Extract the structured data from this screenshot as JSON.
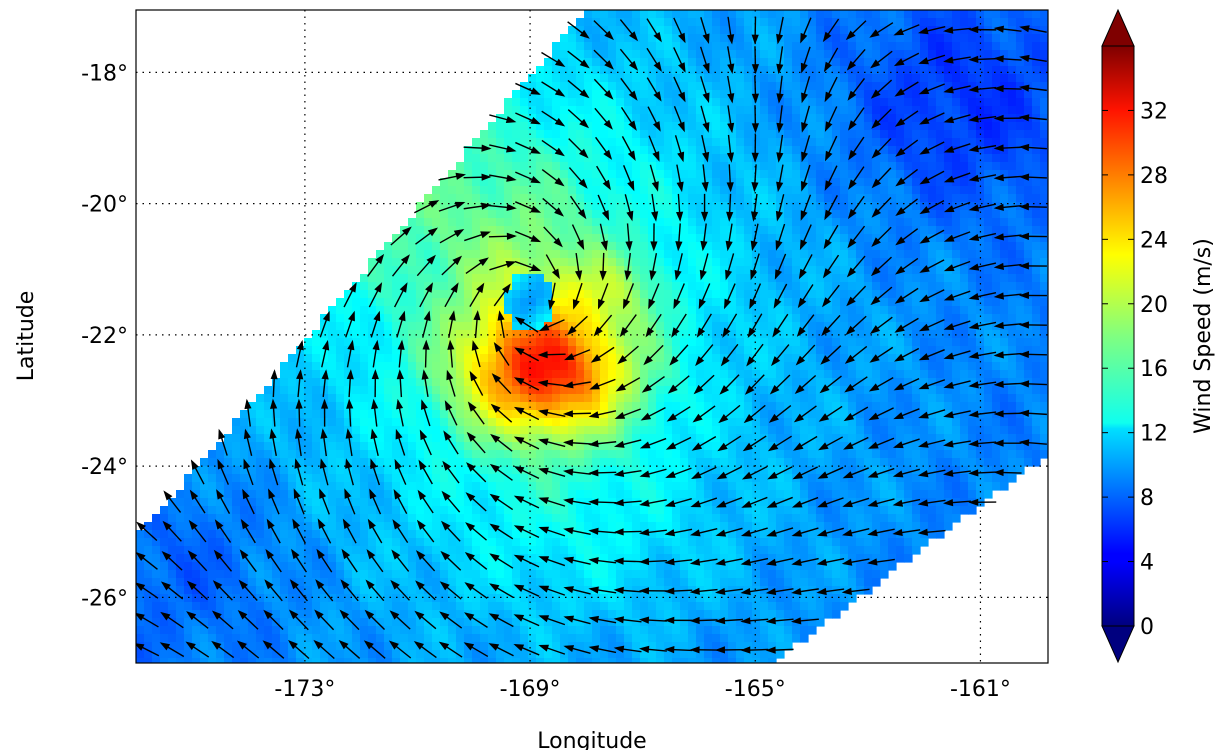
{
  "chart_data": {
    "type": "heatmap",
    "subtype": "wind-vector-field",
    "title": "",
    "xlabel": "Longitude",
    "ylabel": "Latitude",
    "xlim": [
      -176.0,
      -159.8
    ],
    "ylim": [
      -27.0,
      -17.05
    ],
    "x_ticks": [
      {
        "value": -173,
        "label": "-173°"
      },
      {
        "value": -169,
        "label": "-169°"
      },
      {
        "value": -165,
        "label": "-165°"
      },
      {
        "value": -161,
        "label": "-161°"
      }
    ],
    "y_ticks": [
      {
        "value": -18,
        "label": "-18°"
      },
      {
        "value": -20,
        "label": "-20°"
      },
      {
        "value": -22,
        "label": "-22°"
      },
      {
        "value": -24,
        "label": "-24°"
      },
      {
        "value": -26,
        "label": "-26°"
      }
    ],
    "grid": true,
    "grid_style": "dotted",
    "colorbar": {
      "label": "Wind Speed (m/s)",
      "range": [
        0,
        36
      ],
      "extend": "both",
      "colormap": "jet",
      "ticks": [
        {
          "value": 0,
          "label": "0"
        },
        {
          "value": 4,
          "label": "4"
        },
        {
          "value": 8,
          "label": "8"
        },
        {
          "value": 12,
          "label": "12"
        },
        {
          "value": 16,
          "label": "16"
        },
        {
          "value": 20,
          "label": "20"
        },
        {
          "value": 24,
          "label": "24"
        },
        {
          "value": 28,
          "label": "28"
        },
        {
          "value": 32,
          "label": "32"
        }
      ]
    },
    "swath_polygon": [
      [
        -168.0,
        -17.05
      ],
      [
        -159.8,
        -17.05
      ],
      [
        -159.8,
        -23.8
      ],
      [
        -164.7,
        -27.0
      ],
      [
        -176.0,
        -27.0
      ],
      [
        -176.0,
        -25.1
      ]
    ],
    "cyclone_center": [
      -169.0,
      -21.5
    ],
    "eye_speed": 9,
    "max_wind_region": [
      -168.7,
      -22.6
    ],
    "max_speed": 32,
    "arrow_color": "#000000",
    "arrow_spacing_deg": 0.45
  }
}
